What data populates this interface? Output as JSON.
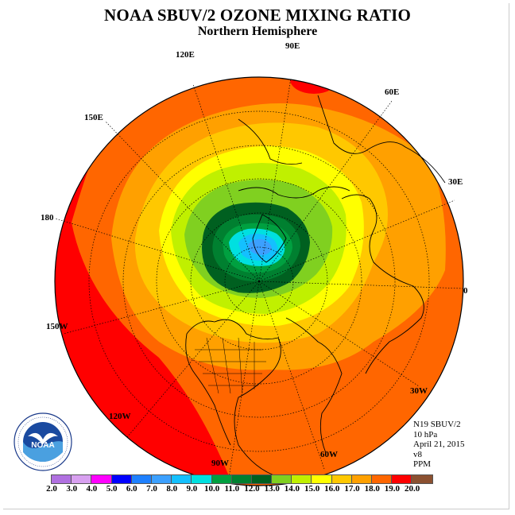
{
  "header": {
    "title": "NOAA SBUV/2 OZONE MIXING RATIO",
    "subtitle": "Northern Hemisphere"
  },
  "longitude_labels": {
    "e120": "120E",
    "e90": "90E",
    "e60": "60E",
    "e150": "150E",
    "e30": "30E",
    "l180": "180",
    "l0": "0",
    "w150": "150W",
    "w30": "30W",
    "w120": "120W",
    "w60": "60W",
    "w90": "90W"
  },
  "info": {
    "satellite": "N19 SBUV/2",
    "level": "10 hPa",
    "date": "April 21, 2015",
    "version": "v8",
    "units": "PPM"
  },
  "logo": {
    "text": "NOAA",
    "ring_text": "NATIONAL OCEANIC AND ATMOSPHERIC ADMINISTRATION · U.S. DEPARTMENT OF COMMERCE"
  },
  "colorbar": {
    "ticks": [
      "2.0",
      "3.0",
      "4.0",
      "5.0",
      "6.0",
      "7.0",
      "8.0",
      "9.0",
      "10.0",
      "11.0",
      "12.0",
      "13.0",
      "14.0",
      "15.0",
      "16.0",
      "17.0",
      "18.0",
      "19.0",
      "20.0"
    ],
    "colors": [
      "#b070e0",
      "#d8a0f0",
      "#ff00ff",
      "#0000ff",
      "#1e80ff",
      "#3ca0ff",
      "#14c0ff",
      "#00e0e0",
      "#00a040",
      "#008030",
      "#006020",
      "#80d020",
      "#c0f000",
      "#ffff00",
      "#ffc800",
      "#ffa000",
      "#ff6600",
      "#ff0000",
      "#8b5030"
    ]
  }
}
